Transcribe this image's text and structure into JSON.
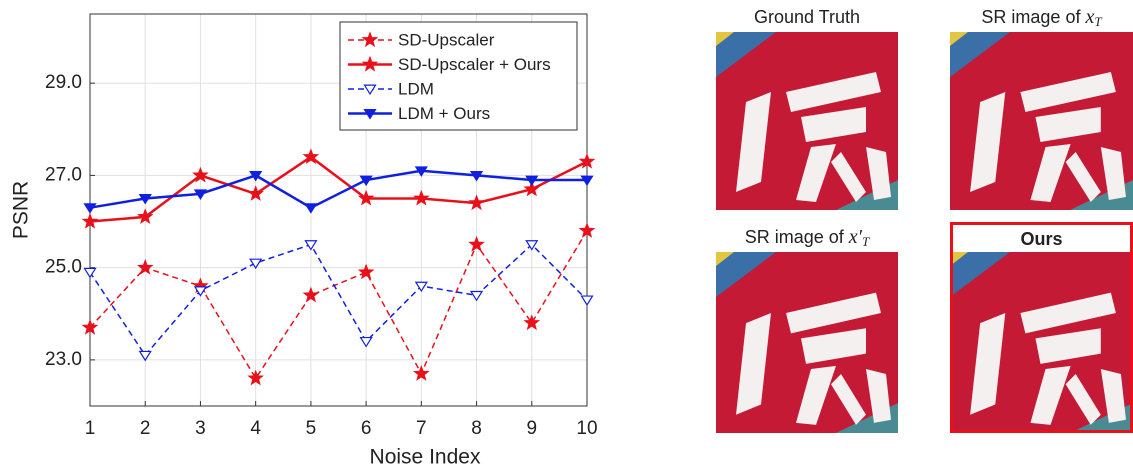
{
  "chart_data": {
    "type": "line",
    "x_label": "Noise Index",
    "y_label": "PSNR",
    "x": [
      1,
      2,
      3,
      4,
      5,
      6,
      7,
      8,
      9,
      10
    ],
    "xlim": [
      1,
      10
    ],
    "xticks": [
      1,
      2,
      3,
      4,
      5,
      6,
      7,
      8,
      9,
      10
    ],
    "ylim": [
      22,
      30.5
    ],
    "yticks": [
      {
        "value": 23,
        "label": "23.0"
      },
      {
        "value": 25,
        "label": "25.0"
      },
      {
        "value": 27,
        "label": "27.0"
      },
      {
        "value": 29,
        "label": "29.0"
      }
    ],
    "grid": true,
    "legend": "upper right",
    "series": [
      {
        "name": "SD-Upscaler",
        "color": "#e8101a",
        "marker": "star",
        "dashed": true,
        "filled": true,
        "values": [
          23.7,
          25.0,
          24.6,
          22.6,
          24.4,
          24.9,
          22.7,
          25.5,
          23.8,
          25.8
        ]
      },
      {
        "name": "SD-Upscaler + Ours",
        "color": "#e8101a",
        "marker": "star",
        "dashed": false,
        "filled": true,
        "values": [
          26.0,
          26.1,
          27.0,
          26.6,
          27.4,
          26.5,
          26.5,
          26.4,
          26.7,
          27.3
        ]
      },
      {
        "name": "LDM",
        "color": "#1020e0",
        "marker": "triangle-down",
        "dashed": true,
        "filled": false,
        "values": [
          24.9,
          23.1,
          24.5,
          25.1,
          25.5,
          23.4,
          24.6,
          24.4,
          25.5,
          24.3
        ]
      },
      {
        "name": "LDM + Ours",
        "color": "#1020e0",
        "marker": "triangle-down",
        "dashed": false,
        "filled": true,
        "values": [
          26.3,
          26.5,
          26.6,
          27.0,
          26.3,
          26.9,
          27.1,
          27.0,
          26.9,
          26.9
        ]
      }
    ]
  },
  "image_panels": [
    {
      "title": "Ground Truth"
    },
    {
      "title": "SR image of",
      "var": "x",
      "sub": "T"
    },
    {
      "title": "SR image of",
      "var": "x′",
      "sub": "T"
    },
    {
      "title": "Ours"
    }
  ]
}
